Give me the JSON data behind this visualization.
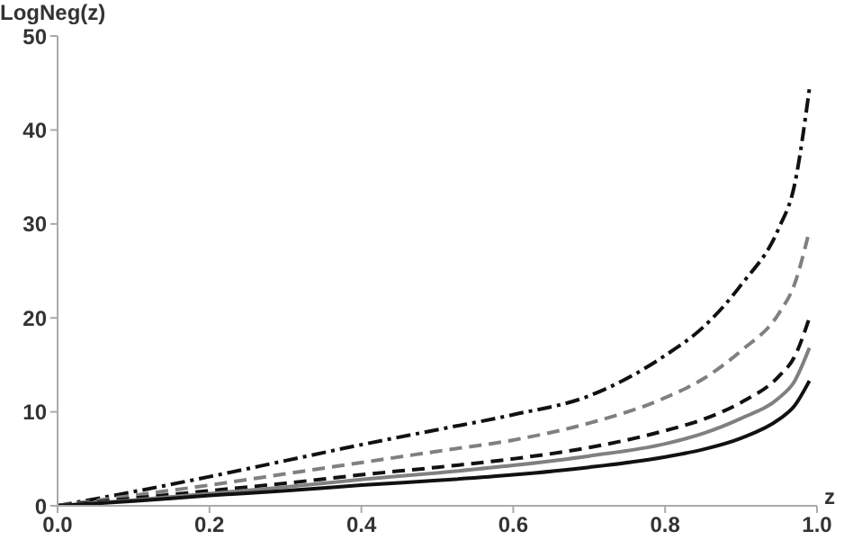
{
  "chart_data": {
    "type": "line",
    "xlabel": "z",
    "ylabel": "LogNeg(z)",
    "xlim": [
      0,
      1
    ],
    "ylim": [
      0,
      50
    ],
    "xticks": [
      {
        "value": 0,
        "label": "0.0"
      },
      {
        "value": 0.2,
        "label": "0.2"
      },
      {
        "value": 0.4,
        "label": "0.4"
      },
      {
        "value": 0.6,
        "label": "0.6"
      },
      {
        "value": 0.8,
        "label": "0.8"
      },
      {
        "value": 1,
        "label": "1.0"
      }
    ],
    "yticks": [
      0,
      10,
      20,
      30,
      40,
      50
    ],
    "grid": false,
    "legend": false,
    "marker": "none",
    "x": [
      0,
      0.1,
      0.2,
      0.3,
      0.4,
      0.5,
      0.6,
      0.7,
      0.8,
      0.85,
      0.9,
      0.95,
      0.97,
      0.99
    ],
    "series": [
      {
        "color": "#111111",
        "line_style": "dashdot",
        "values": [
          0,
          1.5,
          3.1,
          4.8,
          6.5,
          8.1,
          9.7,
          11.7,
          16,
          19,
          23.5,
          29.6,
          34,
          44.4
        ]
      },
      {
        "color": "#808080",
        "line_style": "dashed",
        "values": [
          0,
          1.1,
          2.2,
          3.4,
          4.6,
          5.8,
          7,
          8.8,
          11.5,
          13.5,
          16.5,
          20.5,
          23.5,
          29.3
        ]
      },
      {
        "color": "#111111",
        "line_style": "dashed",
        "values": [
          0,
          0.8,
          1.6,
          2.4,
          3.3,
          4.1,
          5,
          6.2,
          8,
          9.2,
          11,
          13.8,
          15.8,
          20
        ]
      },
      {
        "color": "#808080",
        "line_style": "solid",
        "values": [
          0,
          0.6,
          1.3,
          2,
          2.8,
          3.5,
          4.3,
          5.3,
          6.6,
          7.7,
          9.3,
          11.5,
          13.2,
          16.8
        ]
      },
      {
        "color": "#111111",
        "line_style": "solid",
        "values": [
          0,
          0.5,
          1.1,
          1.6,
          2.2,
          2.7,
          3.3,
          4.1,
          5.2,
          6,
          7.2,
          9.2,
          10.6,
          13.3
        ]
      }
    ]
  }
}
